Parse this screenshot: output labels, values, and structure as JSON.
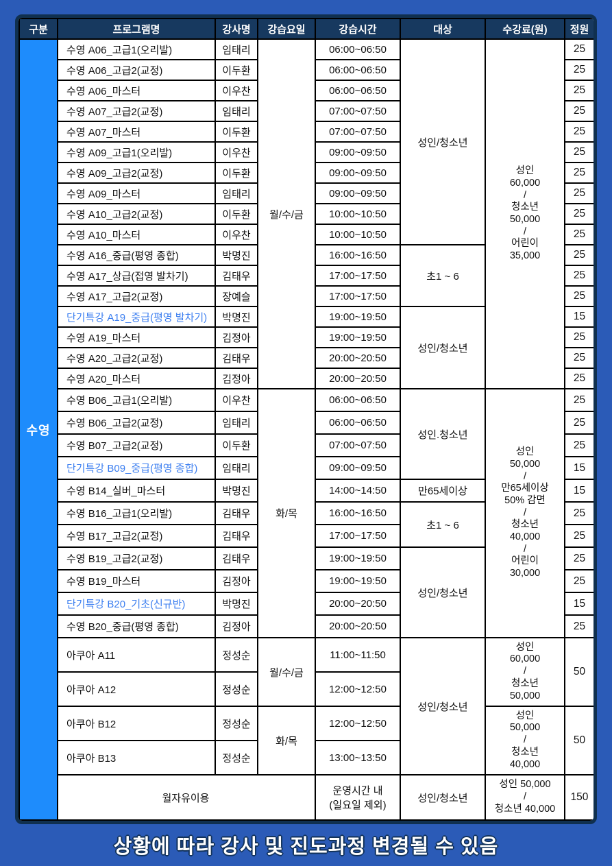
{
  "columns": [
    "구분",
    "프로그램명",
    "강사명",
    "강습요일",
    "강습시간",
    "대상",
    "수강료(원)",
    "정원"
  ],
  "category_label": "수영",
  "footer_note": "상황에 따라 강사 및 진도과정 변경될 수 있음",
  "colors": {
    "page_bg": "#2b5bb7",
    "header_bg": "#17395f",
    "category_bg": "#1e8cfc",
    "special_text": "#3b7ef0",
    "frame_border": "#10304f",
    "cell_border": "#000000",
    "cell_bg": "#ffffff"
  },
  "fees": {
    "swim_mwf": [
      "성인",
      "60,000",
      "/",
      "청소년",
      "50,000",
      "/",
      "어린이",
      "35,000"
    ],
    "swim_tt": [
      "성인",
      "50,000",
      "/",
      "만65세이상",
      "50% 감면",
      "/",
      "청소년",
      "40,000",
      "/",
      "어린이",
      "30,000"
    ],
    "aqua_mwf": [
      "성인",
      "60,000",
      "/",
      "청소년",
      "50,000"
    ],
    "aqua_tt": [
      "성인",
      "50,000",
      "/",
      "청소년",
      "40,000"
    ],
    "free_use": [
      "성인 50,000",
      "/",
      "청소년 40,000"
    ]
  },
  "rows": [
    {
      "group": "A",
      "program": "수영 A06_고급1(오리발)",
      "instructor": "임태리",
      "time": "06:00~06:50",
      "cap": "25",
      "days": {
        "label": "월/수/금",
        "span": 17
      },
      "target": {
        "label": "성인/청소년",
        "span": 10
      },
      "fee": {
        "lines": [
          "성인",
          "60,000",
          "/",
          "청소년",
          "50,000",
          "/",
          "어린이",
          "35,000"
        ],
        "span": 17
      }
    },
    {
      "group": "A",
      "program": "수영 A06_고급2(교정)",
      "instructor": "이두환",
      "time": "06:00~06:50",
      "cap": "25"
    },
    {
      "group": "A",
      "program": "수영 A06_마스터",
      "instructor": "이우찬",
      "time": "06:00~06:50",
      "cap": "25"
    },
    {
      "group": "A",
      "program": "수영 A07_고급2(교정)",
      "instructor": "임태리",
      "time": "07:00~07:50",
      "cap": "25"
    },
    {
      "group": "A",
      "program": "수영 A07_마스터",
      "instructor": "이두환",
      "time": "07:00~07:50",
      "cap": "25"
    },
    {
      "group": "A",
      "program": "수영 A09_고급1(오리발)",
      "instructor": "이우찬",
      "time": "09:00~09:50",
      "cap": "25"
    },
    {
      "group": "A",
      "program": "수영 A09_고급2(교정)",
      "instructor": "이두환",
      "time": "09:00~09:50",
      "cap": "25"
    },
    {
      "group": "A",
      "program": "수영 A09_마스터",
      "instructor": "임태리",
      "time": "09:00~09:50",
      "cap": "25"
    },
    {
      "group": "A",
      "program": "수영 A10_고급2(교정)",
      "instructor": "이두환",
      "time": "10:00~10:50",
      "cap": "25"
    },
    {
      "group": "A",
      "program": "수영 A10_마스터",
      "instructor": "이우찬",
      "time": "10:00~10:50",
      "cap": "25"
    },
    {
      "group": "A",
      "program": "수영 A16_중급(평영 종합)",
      "instructor": "박명진",
      "time": "16:00~16:50",
      "cap": "25",
      "target": {
        "label": "초1 ~ 6",
        "span": 3
      }
    },
    {
      "group": "A",
      "program": "수영 A17_상급(접영 발차기)",
      "instructor": "김태우",
      "time": "17:00~17:50",
      "cap": "25"
    },
    {
      "group": "A",
      "program": "수영 A17_고급2(교정)",
      "instructor": "장예슬",
      "time": "17:00~17:50",
      "cap": "25"
    },
    {
      "group": "A",
      "program": "단기특강 A19_중급(평영 발차기)",
      "special": true,
      "instructor": "박명진",
      "time": "19:00~19:50",
      "cap": "15",
      "target": {
        "label": "성인/청소년",
        "span": 4
      }
    },
    {
      "group": "A",
      "program": "수영 A19_마스터",
      "instructor": "김정아",
      "time": "19:00~19:50",
      "cap": "25"
    },
    {
      "group": "A",
      "program": "수영 A20_고급2(교정)",
      "instructor": "김태우",
      "time": "20:00~20:50",
      "cap": "25"
    },
    {
      "group": "A",
      "program": "수영 A20_마스터",
      "instructor": "김정아",
      "time": "20:00~20:50",
      "cap": "25"
    },
    {
      "group": "B",
      "program": "수영 B06_고급1(오리발)",
      "instructor": "이우찬",
      "time": "06:00~06:50",
      "cap": "25",
      "days": {
        "label": "화/목",
        "span": 11
      },
      "target": {
        "label": "성인.청소년",
        "span": 4
      },
      "fee": {
        "lines": [
          "성인",
          "50,000",
          "/",
          "만65세이상",
          "50% 감면",
          "/",
          "청소년",
          "40,000",
          "/",
          "어린이",
          "30,000"
        ],
        "span": 11
      }
    },
    {
      "group": "B",
      "program": "수영 B06_고급2(교정)",
      "instructor": "임태리",
      "time": "06:00~06:50",
      "cap": "25"
    },
    {
      "group": "B",
      "program": "수영 B07_고급2(교정)",
      "instructor": "이두환",
      "time": "07:00~07:50",
      "cap": "25"
    },
    {
      "group": "B",
      "program": "단기특강 B09_중급(평영 종합)",
      "special": true,
      "instructor": "임태리",
      "time": "09:00~09:50",
      "cap": "15"
    },
    {
      "group": "B",
      "program": "수영 B14_실버_마스터",
      "instructor": "박명진",
      "time": "14:00~14:50",
      "cap": "15",
      "target": {
        "label": "만65세이상",
        "span": 1
      }
    },
    {
      "group": "B",
      "program": "수영 B16_고급1(오리발)",
      "instructor": "김태우",
      "time": "16:00~16:50",
      "cap": "25",
      "target": {
        "label": "초1 ~ 6",
        "span": 2
      }
    },
    {
      "group": "B",
      "program": "수영 B17_고급2(교정)",
      "instructor": "김태우",
      "time": "17:00~17:50",
      "cap": "25"
    },
    {
      "group": "B",
      "program": "수영 B19_고급2(교정)",
      "instructor": "김태우",
      "time": "19:00~19:50",
      "cap": "25",
      "target": {
        "label": "성인/청소년",
        "span": 4
      }
    },
    {
      "group": "B",
      "program": "수영 B19_마스터",
      "instructor": "김정아",
      "time": "19:00~19:50",
      "cap": "25"
    },
    {
      "group": "B",
      "program": "단기특강 B20_기초(신규반)",
      "special": true,
      "instructor": "박명진",
      "time": "20:00~20:50",
      "cap": "15"
    },
    {
      "group": "B",
      "program": "수영 B20_중급(평영 종합)",
      "instructor": "김정아",
      "time": "20:00~20:50",
      "cap": "25"
    },
    {
      "group": "aqua",
      "program": "아쿠아 A11",
      "instructor": "정성순",
      "time": "11:00~11:50",
      "days": {
        "label": "월/수/금",
        "span": 2
      },
      "target": {
        "label": "성인/청소년",
        "span": 4
      },
      "fee": {
        "lines": [
          "성인",
          "60,000",
          "/",
          "청소년",
          "50,000"
        ],
        "span": 2
      },
      "cap": {
        "label": "50",
        "span": 2
      }
    },
    {
      "group": "aqua",
      "program": "아쿠아 A12",
      "instructor": "정성순",
      "time": "12:00~12:50"
    },
    {
      "group": "aqua",
      "program": "아쿠아 B12",
      "instructor": "정성순",
      "time": "12:00~12:50",
      "days": {
        "label": "화/목",
        "span": 2
      },
      "fee": {
        "lines": [
          "성인",
          "50,000",
          "/",
          "청소년",
          "40,000"
        ],
        "span": 2
      },
      "cap": {
        "label": "50",
        "span": 2
      }
    },
    {
      "group": "aqua",
      "program": "아쿠아 B13",
      "instructor": "정성순",
      "time": "13:00~13:50"
    },
    {
      "group": "free",
      "program": "월자유이용",
      "program_colspan": 3,
      "center": true,
      "time": [
        "운영시간 내",
        "(일요일 제외)"
      ],
      "target": {
        "label": "성인/청소년",
        "span": 1
      },
      "fee": {
        "lines": [
          "성인 50,000",
          "/",
          "청소년 40,000"
        ],
        "span": 1
      },
      "cap": "150"
    }
  ]
}
